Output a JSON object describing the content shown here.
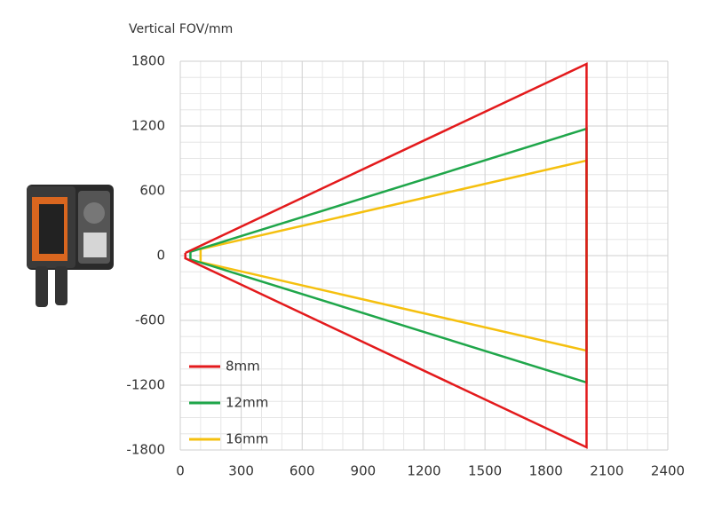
{
  "chart_data": {
    "type": "line",
    "y_label": "Vertical FOV/mm",
    "xlim": [
      0,
      2400
    ],
    "xticks": [
      0,
      300,
      600,
      900,
      1200,
      1500,
      1800,
      2100,
      2400
    ],
    "ylim": [
      -1800,
      1800
    ],
    "yticks": [
      -1800,
      -1200,
      -600,
      0,
      600,
      1200,
      1800
    ],
    "grid": true,
    "legend": "lower left",
    "series": [
      {
        "name": "8mm",
        "color": "#e31a1c",
        "x": [
          25,
          2000,
          2000,
          25,
          25
        ],
        "values": [
          25,
          1775,
          -1775,
          -25,
          25
        ]
      },
      {
        "name": "12mm",
        "color": "#1fa64a",
        "x": [
          50,
          2000,
          2000,
          50,
          50
        ],
        "values": [
          35,
          1175,
          -1175,
          -35,
          35
        ]
      },
      {
        "name": "16mm",
        "color": "#f5c00f",
        "x": [
          100,
          2000,
          2000,
          100,
          100
        ],
        "values": [
          60,
          880,
          -880,
          -60,
          60
        ]
      }
    ]
  }
}
